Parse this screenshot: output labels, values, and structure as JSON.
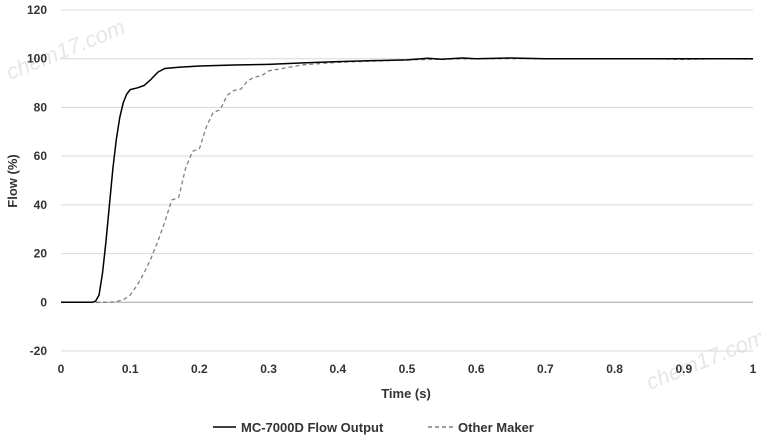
{
  "chart_data": {
    "type": "line",
    "xlabel": "Time (s)",
    "ylabel": "Flow (%)",
    "xlim": [
      0,
      1
    ],
    "ylim": [
      -20,
      120
    ],
    "x_ticks": [
      "0",
      "0.1",
      "0.2",
      "0.3",
      "0.4",
      "0.5",
      "0.6",
      "0.7",
      "0.8",
      "0.9",
      "1"
    ],
    "y_ticks": [
      "120",
      "100",
      "80",
      "60",
      "40",
      "20",
      "0",
      "-20"
    ],
    "grid": "horizontal",
    "legend": "bottom",
    "watermarks": [
      "chem17.com",
      "chem17.com"
    ],
    "series": [
      {
        "name": "MC-7000D Flow Output",
        "color": "#000000",
        "dash": "solid",
        "points": [
          [
            0,
            0
          ],
          [
            0.045,
            0
          ],
          [
            0.05,
            0.5
          ],
          [
            0.055,
            3
          ],
          [
            0.06,
            12
          ],
          [
            0.065,
            25
          ],
          [
            0.07,
            40
          ],
          [
            0.075,
            55
          ],
          [
            0.08,
            67
          ],
          [
            0.085,
            76
          ],
          [
            0.09,
            82
          ],
          [
            0.095,
            85.5
          ],
          [
            0.1,
            87.3
          ],
          [
            0.11,
            88
          ],
          [
            0.12,
            89
          ],
          [
            0.13,
            91.5
          ],
          [
            0.14,
            94.5
          ],
          [
            0.15,
            96
          ],
          [
            0.17,
            96.5
          ],
          [
            0.2,
            97
          ],
          [
            0.25,
            97.4
          ],
          [
            0.3,
            97.7
          ],
          [
            0.35,
            98.3
          ],
          [
            0.4,
            98.8
          ],
          [
            0.45,
            99.2
          ],
          [
            0.5,
            99.5
          ],
          [
            0.53,
            100.2
          ],
          [
            0.55,
            99.8
          ],
          [
            0.58,
            100.3
          ],
          [
            0.6,
            100
          ],
          [
            0.65,
            100.3
          ],
          [
            0.7,
            100
          ],
          [
            0.75,
            100
          ],
          [
            0.8,
            100
          ],
          [
            0.85,
            100
          ],
          [
            0.9,
            100
          ],
          [
            0.95,
            100
          ],
          [
            1,
            100
          ]
        ]
      },
      {
        "name": "Other Maker",
        "color": "#808080",
        "dash": "dashed",
        "points": [
          [
            0,
            0
          ],
          [
            0.07,
            0
          ],
          [
            0.08,
            0.3
          ],
          [
            0.09,
            1
          ],
          [
            0.1,
            3
          ],
          [
            0.11,
            7
          ],
          [
            0.12,
            12
          ],
          [
            0.13,
            18
          ],
          [
            0.14,
            25
          ],
          [
            0.15,
            33
          ],
          [
            0.16,
            42
          ],
          [
            0.17,
            43
          ],
          [
            0.18,
            55
          ],
          [
            0.19,
            62
          ],
          [
            0.2,
            63
          ],
          [
            0.21,
            72
          ],
          [
            0.22,
            78
          ],
          [
            0.23,
            79
          ],
          [
            0.24,
            85
          ],
          [
            0.25,
            87
          ],
          [
            0.26,
            87.5
          ],
          [
            0.27,
            91
          ],
          [
            0.28,
            92.5
          ],
          [
            0.29,
            93
          ],
          [
            0.3,
            95
          ],
          [
            0.32,
            96
          ],
          [
            0.35,
            97.5
          ],
          [
            0.4,
            98.5
          ],
          [
            0.45,
            99
          ],
          [
            0.5,
            99.5
          ],
          [
            0.55,
            99.8
          ],
          [
            0.6,
            100
          ],
          [
            0.7,
            100
          ],
          [
            0.8,
            100
          ],
          [
            0.85,
            100
          ],
          [
            0.9,
            99.7
          ],
          [
            0.95,
            100
          ],
          [
            1,
            99.8
          ]
        ]
      }
    ]
  }
}
